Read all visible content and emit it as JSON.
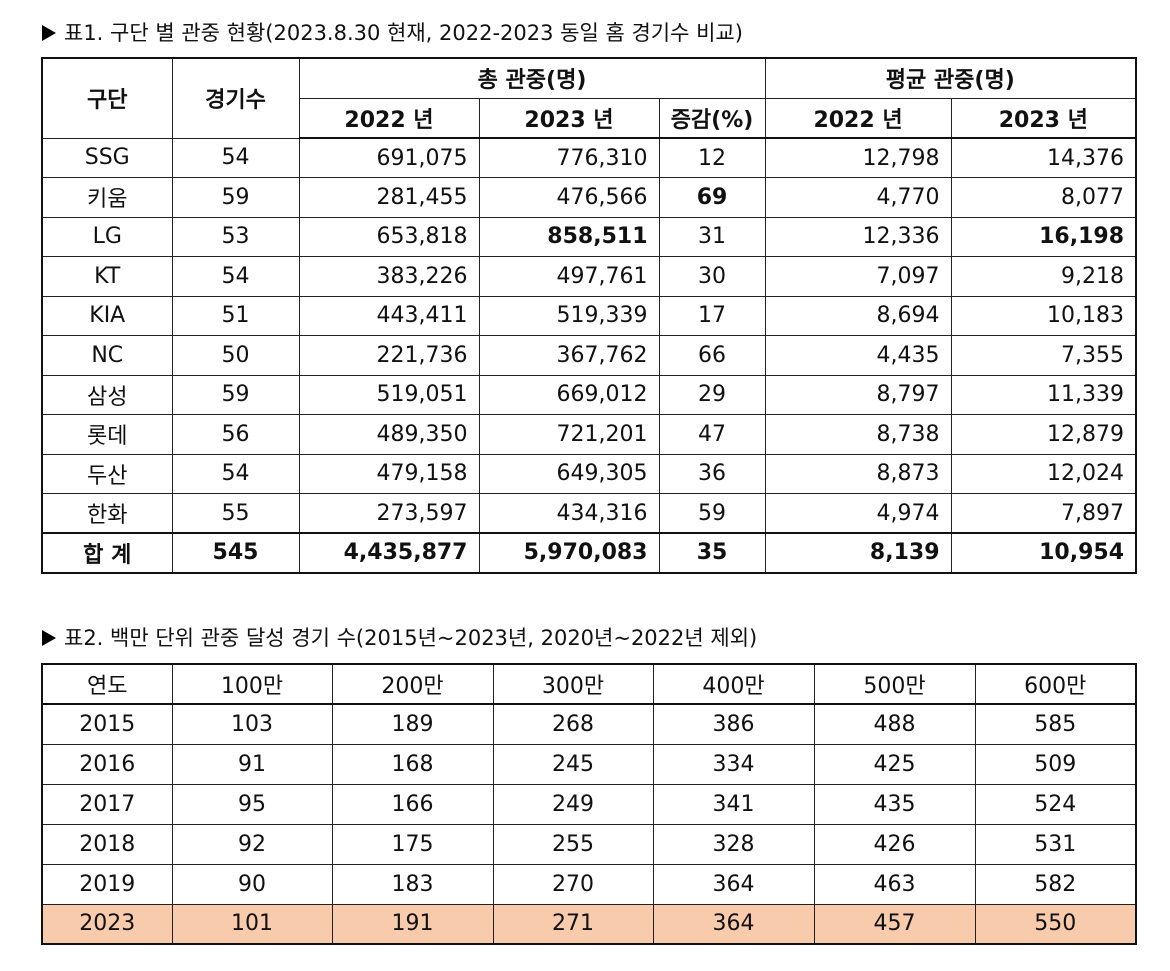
{
  "table1": {
    "caption": "표1. 구단 별 관중 현황(2023.8.30 현재, 2022-2023 동일 홈 경기수 비교)",
    "headers": {
      "team": "구단",
      "games": "경기수",
      "total": "총 관중(명)",
      "average": "평균 관중(명)",
      "y2022": "2022 년",
      "y2023": "2023 년",
      "change": "증감(%)",
      "avg2022": "2022 년",
      "avg2023": "2023 년"
    },
    "rows": [
      {
        "team": "SSG",
        "games": "54",
        "total2022": "691,075",
        "total2023": "776,310",
        "change": "12",
        "avg2022": "12,798",
        "avg2023": "14,376"
      },
      {
        "team": "키움",
        "games": "59",
        "total2022": "281,455",
        "total2023": "476,566",
        "change": "69",
        "avg2022": "4,770",
        "avg2023": "8,077"
      },
      {
        "team": "LG",
        "games": "53",
        "total2022": "653,818",
        "total2023": "858,511",
        "change": "31",
        "avg2022": "12,336",
        "avg2023": "16,198"
      },
      {
        "team": "KT",
        "games": "54",
        "total2022": "383,226",
        "total2023": "497,761",
        "change": "30",
        "avg2022": "7,097",
        "avg2023": "9,218"
      },
      {
        "team": "KIA",
        "games": "51",
        "total2022": "443,411",
        "total2023": "519,339",
        "change": "17",
        "avg2022": "8,694",
        "avg2023": "10,183"
      },
      {
        "team": "NC",
        "games": "50",
        "total2022": "221,736",
        "total2023": "367,762",
        "change": "66",
        "avg2022": "4,435",
        "avg2023": "7,355"
      },
      {
        "team": "삼성",
        "games": "59",
        "total2022": "519,051",
        "total2023": "669,012",
        "change": "29",
        "avg2022": "8,797",
        "avg2023": "11,339"
      },
      {
        "team": "롯데",
        "games": "56",
        "total2022": "489,350",
        "total2023": "721,201",
        "change": "47",
        "avg2022": "8,738",
        "avg2023": "12,879"
      },
      {
        "team": "두산",
        "games": "54",
        "total2022": "479,158",
        "total2023": "649,305",
        "change": "36",
        "avg2022": "8,873",
        "avg2023": "12,024"
      },
      {
        "team": "한화",
        "games": "55",
        "total2022": "273,597",
        "total2023": "434,316",
        "change": "59",
        "avg2022": "4,974",
        "avg2023": "7,897"
      }
    ],
    "total": {
      "team": "합 계",
      "games": "545",
      "total2022": "4,435,877",
      "total2023": "5,970,083",
      "change": "35",
      "avg2022": "8,139",
      "avg2023": "10,954"
    }
  },
  "table2": {
    "caption": "표2. 백만 단위 관중 달성 경기 수(2015년~2023년, 2020년~2022년 제외)",
    "headers": [
      "연도",
      "100만",
      "200만",
      "300만",
      "400만",
      "500만",
      "600만"
    ],
    "rows": [
      [
        "2015",
        "103",
        "189",
        "268",
        "386",
        "488",
        "585"
      ],
      [
        "2016",
        "91",
        "168",
        "245",
        "334",
        "425",
        "509"
      ],
      [
        "2017",
        "95",
        "166",
        "249",
        "341",
        "435",
        "524"
      ],
      [
        "2018",
        "92",
        "175",
        "255",
        "328",
        "426",
        "531"
      ],
      [
        "2019",
        "90",
        "183",
        "270",
        "364",
        "463",
        "582"
      ],
      [
        "2023",
        "101",
        "191",
        "271",
        "364",
        "457",
        "550"
      ]
    ],
    "highlight_color": "#f8cbad"
  }
}
